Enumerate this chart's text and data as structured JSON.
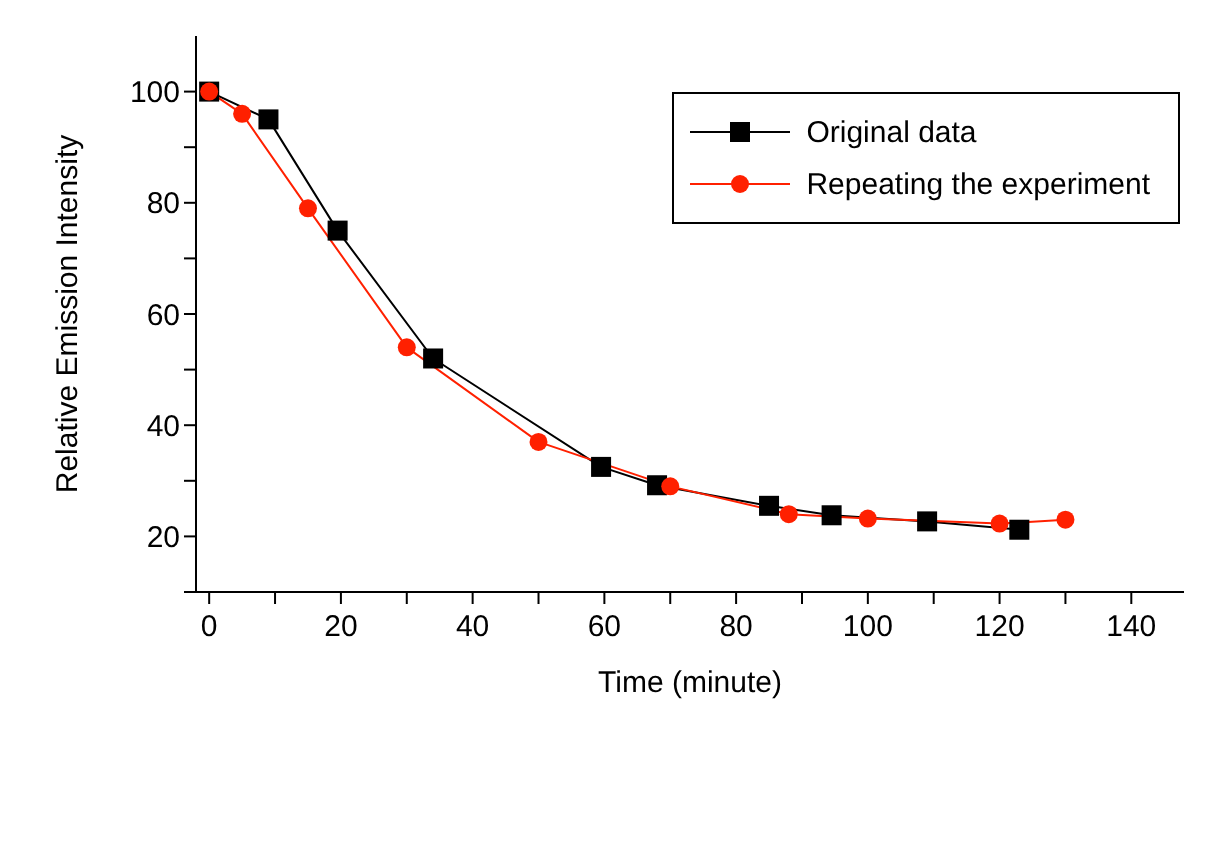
{
  "chart_data": {
    "type": "line",
    "xlabel": "Time (minute)",
    "ylabel": "Relative Emission Intensity",
    "xlim": [
      -2,
      148
    ],
    "ylim": [
      10,
      110
    ],
    "xticks": [
      0,
      {
        "value": 10,
        "label": null
      },
      20,
      {
        "value": 30,
        "label": null
      },
      40,
      {
        "value": 50,
        "label": null
      },
      60,
      {
        "value": 70,
        "label": null
      },
      80,
      {
        "value": 90,
        "label": null
      },
      100,
      {
        "value": 110,
        "label": null
      },
      120,
      {
        "value": 130,
        "label": null
      },
      140
    ],
    "yticks": [
      {
        "value": 10,
        "label": null
      },
      20,
      {
        "value": 30,
        "label": null
      },
      40,
      {
        "value": 50,
        "label": null
      },
      60,
      {
        "value": 70,
        "label": null
      },
      80,
      {
        "value": 90,
        "label": null
      },
      100
    ],
    "grid": false,
    "legend": "top right",
    "line_style": "solid",
    "series": [
      {
        "name": "Original data",
        "color": "#000000",
        "marker": "square",
        "x": [
          0,
          9,
          19.5,
          34,
          59.5,
          68,
          85,
          94.5,
          109,
          123
        ],
        "values": [
          100,
          95,
          75,
          52,
          32.5,
          29.2,
          25.5,
          23.8,
          22.7,
          21.2
        ]
      },
      {
        "name": "Repeating the experiment",
        "color": "#ff2000",
        "marker": "circle",
        "x": [
          0,
          5,
          15,
          30,
          50,
          70,
          88,
          100,
          120,
          130
        ],
        "values": [
          100,
          96,
          79,
          54,
          37,
          29,
          24,
          23.2,
          22.3,
          23
        ]
      }
    ]
  }
}
